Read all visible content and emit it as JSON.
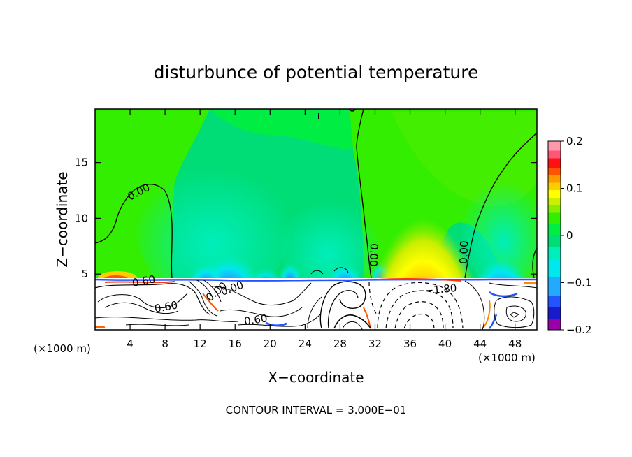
{
  "chart_data": {
    "type": "heatmap",
    "title": "disturbunce of potential temperature",
    "xlabel": "X−coordinate",
    "ylabel": "Z−coordinate",
    "x_unit_left": "(×1000 m)",
    "x_unit_right": "(×1000 m)",
    "xlim": [
      0,
      50.5
    ],
    "ylim": [
      0,
      19.8
    ],
    "x_ticks": [
      4,
      8,
      12,
      16,
      20,
      24,
      28,
      32,
      36,
      40,
      44,
      48
    ],
    "y_ticks": [
      5,
      10,
      15
    ],
    "colorbar": {
      "range": [
        -0.2,
        0.2
      ],
      "tick_values": [
        0.2,
        0.1,
        0,
        -0.1,
        -0.2
      ],
      "tick_labels": [
        "0.2",
        "0.1",
        "0",
        "−0.1",
        "−0.2"
      ],
      "colors": [
        "#9900aa",
        "#1a1acc",
        "#2255ff",
        "#22aaff",
        "#00e8ee",
        "#00eebb",
        "#00dd77",
        "#00ee44",
        "#33ee00",
        "#88ee00",
        "#ccee00",
        "#ffff00",
        "#ffcc00",
        "#ff9900",
        "#ff5500",
        "#ff1111",
        "#ff5577",
        "#ff99aa"
      ]
    },
    "fill_features": [
      {
        "name": "warm-anomaly-lee",
        "x": 37.8,
        "z": 4.9,
        "peak": 0.2
      },
      {
        "name": "cool-anomaly-44",
        "x": 44.8,
        "z": 5.2,
        "peak": -0.13
      },
      {
        "name": "cool-anomaly-15",
        "x": 15.8,
        "z": 5.6,
        "peak": -0.09
      },
      {
        "name": "cool-anomaly-28",
        "x": 28.3,
        "z": 5.3,
        "peak": -0.07
      }
    ],
    "contour_labels": [
      "0.00",
      "0.00",
      "0.00",
      "0.00",
      "0.60",
      "0.60",
      "0.60",
      "0.00",
      "−1.80"
    ],
    "contour_interval_text": "CONTOUR INTERVAL = 3.000E−01"
  }
}
